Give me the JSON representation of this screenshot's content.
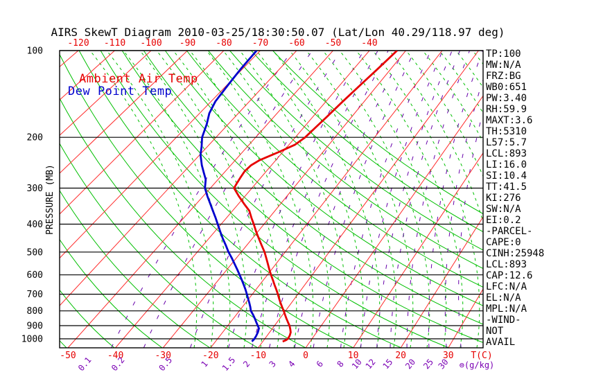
{
  "chart_data": {
    "type": "line",
    "subtype": "skewt-logp",
    "title": "AIRS SkewT Diagram 2010-03-25/18:30:50.07 (Lat/Lon 40.29/118.97 deg)",
    "pressure_axis": {
      "label": "PRESSURE (MB)",
      "ticks": [
        100,
        200,
        300,
        400,
        500,
        600,
        700,
        800,
        900,
        1000
      ],
      "range": [
        100,
        1075
      ]
    },
    "temp_axis": {
      "label": "T(C)",
      "bottom_ticks": [
        -50,
        -40,
        -30,
        -20,
        -10,
        0,
        10,
        20,
        30
      ],
      "top_ticks": [
        -120,
        -110,
        -100,
        -90,
        -80,
        -70,
        -60,
        -50,
        -40
      ],
      "step": 10
    },
    "mixing_axis": {
      "label": "⊜(g/kg)",
      "values": [
        0.1,
        0.2,
        0.5,
        1,
        1.5,
        2,
        3,
        4,
        6,
        8,
        10,
        12,
        15,
        20,
        25,
        30
      ]
    },
    "grid": {
      "isotherms_c": {
        "min": -120,
        "max": 40,
        "step": 10
      },
      "dry_adiabats": {
        "x0_min": 96,
        "x0_max": 1232,
        "step": 69
      },
      "moist_adiabats": {
        "x0_min": 280,
        "x0_max": 1144,
        "step": 24
      },
      "legend_position": "top-left"
    },
    "series": [
      {
        "name": "Ambient Air Temp",
        "color": "#e60000",
        "points_p_t": [
          [
            100,
            -32.4
          ],
          [
            115,
            -33.5
          ],
          [
            130,
            -34.5
          ],
          [
            150,
            -35.6
          ],
          [
            170,
            -36.4
          ],
          [
            185,
            -37.0
          ],
          [
            200,
            -37.5
          ],
          [
            212,
            -38.5
          ],
          [
            225,
            -41.0
          ],
          [
            240,
            -44.0
          ],
          [
            250,
            -45.0
          ],
          [
            262,
            -45.3
          ],
          [
            275,
            -45.0
          ],
          [
            290,
            -44.6
          ],
          [
            300,
            -44.3
          ],
          [
            320,
            -41.5
          ],
          [
            340,
            -38.7
          ],
          [
            360,
            -36.0
          ],
          [
            380,
            -34.2
          ],
          [
            400,
            -32.4
          ],
          [
            425,
            -30.4
          ],
          [
            450,
            -28.4
          ],
          [
            475,
            -26.5
          ],
          [
            500,
            -24.7
          ],
          [
            525,
            -23.2
          ],
          [
            550,
            -21.8
          ],
          [
            575,
            -20.5
          ],
          [
            600,
            -19.2
          ],
          [
            625,
            -17.9
          ],
          [
            650,
            -16.7
          ],
          [
            675,
            -15.5
          ],
          [
            700,
            -14.4
          ],
          [
            725,
            -13.4
          ],
          [
            750,
            -12.4
          ],
          [
            775,
            -11.4
          ],
          [
            800,
            -10.4
          ],
          [
            825,
            -9.5
          ],
          [
            850,
            -8.6
          ],
          [
            875,
            -7.7
          ],
          [
            900,
            -6.8
          ],
          [
            925,
            -6.1
          ],
          [
            950,
            -5.5
          ],
          [
            975,
            -5.2
          ],
          [
            1000,
            -5.1
          ],
          [
            1010,
            -5.3
          ],
          [
            1022,
            -5.8
          ]
        ]
      },
      {
        "name": "Dew Point Temp",
        "color": "#0000cd",
        "points_p_t": [
          [
            100,
            -71.0
          ],
          [
            115,
            -70.5
          ],
          [
            130,
            -69.8
          ],
          [
            150,
            -68.9
          ],
          [
            165,
            -67.5
          ],
          [
            180,
            -65.5
          ],
          [
            200,
            -63.5
          ],
          [
            215,
            -61.5
          ],
          [
            230,
            -59.8
          ],
          [
            250,
            -57.1
          ],
          [
            265,
            -55.0
          ],
          [
            280,
            -53.0
          ],
          [
            300,
            -51.3
          ],
          [
            320,
            -49.0
          ],
          [
            340,
            -46.7
          ],
          [
            360,
            -44.6
          ],
          [
            380,
            -42.6
          ],
          [
            400,
            -40.8
          ],
          [
            425,
            -38.7
          ],
          [
            450,
            -36.7
          ],
          [
            475,
            -34.7
          ],
          [
            500,
            -32.9
          ],
          [
            525,
            -31.0
          ],
          [
            550,
            -29.3
          ],
          [
            575,
            -27.7
          ],
          [
            600,
            -26.2
          ],
          [
            625,
            -24.8
          ],
          [
            650,
            -23.5
          ],
          [
            675,
            -22.3
          ],
          [
            700,
            -21.2
          ],
          [
            725,
            -20.2
          ],
          [
            750,
            -19.2
          ],
          [
            775,
            -18.3
          ],
          [
            800,
            -17.5
          ],
          [
            825,
            -16.4
          ],
          [
            850,
            -15.4
          ],
          [
            875,
            -14.5
          ],
          [
            900,
            -13.6
          ],
          [
            920,
            -12.9
          ],
          [
            950,
            -12.5
          ],
          [
            975,
            -12.3
          ],
          [
            1000,
            -12.2
          ],
          [
            1022,
            -12.3
          ]
        ]
      }
    ],
    "colors": {
      "isotherm": "#ff2a2a",
      "dry_adiabat": "#00bf00",
      "moist_adiabat": "#00bf00",
      "mixing_ratio": "#6600aa",
      "pressure_line": "#000000",
      "tick_red": "#e60000",
      "tick_purple": "#7a00b4",
      "text_black": "#000000"
    }
  },
  "stats": [
    "TP:100",
    "MW:N/A",
    "FRZ:BG",
    "WB0:651",
    "PW:3.40",
    "RH:59.9",
    "MAXT:3.6",
    "TH:5310",
    "L57:5.7",
    "LCL:893",
    "LI:16.0",
    "SI:10.4",
    "TT:41.5",
    "KI:276",
    "SW:N/A",
    "EI:0.2",
    "-PARCEL-",
    "CAPE:0",
    "CINH:25948",
    "LCL:893",
    "CAP:12.6",
    "LFC:N/A",
    "EL:N/A",
    "MPL:N/A",
    "-WIND-",
    "NOT",
    "AVAIL"
  ]
}
